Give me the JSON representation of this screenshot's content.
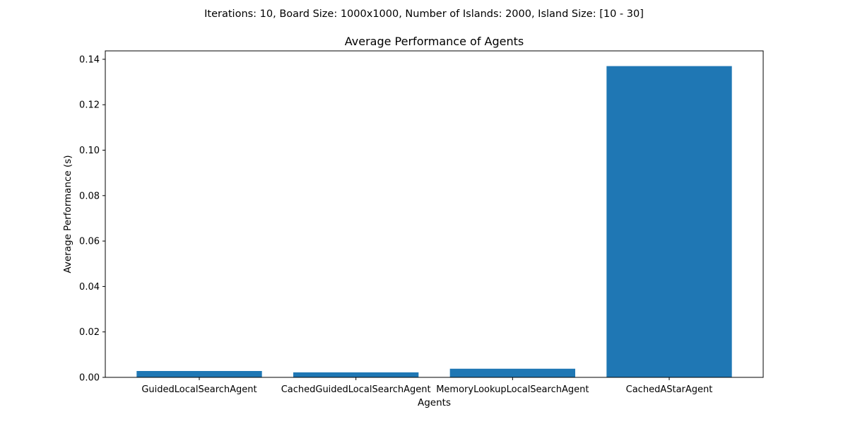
{
  "figure": {
    "suptitle": "Iterations: 10, Board Size: 1000x1000, Number of Islands: 2000, Island Size: [10 - 30]"
  },
  "chart_data": {
    "type": "bar",
    "title": "Average Performance of Agents",
    "xlabel": "Agents",
    "ylabel": "Average Performance (s)",
    "categories": [
      "GuidedLocalSearchAgent",
      "CachedGuidedLocalSearchAgent",
      "MemoryLookupLocalSearchAgent",
      "CachedAStarAgent"
    ],
    "values": [
      0.0028,
      0.0022,
      0.0038,
      0.137
    ],
    "ylim": [
      0,
      0.1437
    ],
    "yticks": [
      0.0,
      0.02,
      0.04,
      0.06,
      0.08,
      0.1,
      0.12,
      0.14
    ],
    "ytick_labels": [
      "0.00",
      "0.02",
      "0.04",
      "0.06",
      "0.08",
      "0.10",
      "0.12",
      "0.14"
    ],
    "grid": false,
    "legend": "none",
    "colors": {
      "bar": "#1f77b4",
      "axes": "#000000",
      "background": "#ffffff"
    }
  }
}
